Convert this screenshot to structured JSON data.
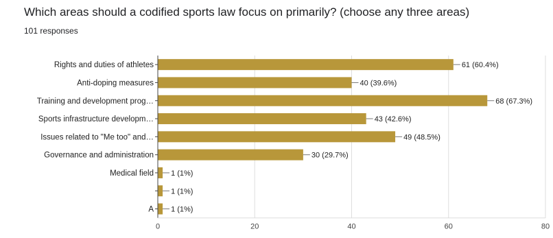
{
  "question": {
    "title": "Which areas should a codified sports law focus on primarily? (choose any three areas)",
    "responses": "101 responses"
  },
  "colors": {
    "bar": "#b8973a",
    "gridline": "#dddddd",
    "axis": "#444444",
    "leader": "#777777"
  },
  "chart_data": {
    "type": "bar",
    "orientation": "horizontal",
    "title": "Which areas should a codified sports law focus on primarily? (choose any three areas)",
    "subtitle": "101 responses",
    "categories": [
      "Rights and duties of athletes",
      "Anti-doping measures",
      "Training and development prog…",
      "Sports infrastructure developm…",
      "Issues related to \"Me too\" and…",
      "Governance and administration",
      "Medical field",
      "",
      "A"
    ],
    "values": [
      61,
      40,
      68,
      43,
      49,
      30,
      1,
      1,
      1
    ],
    "value_labels": [
      "61 (60.4%)",
      "40 (39.6%)",
      "68 (67.3%)",
      "43 (42.6%)",
      "49 (48.5%)",
      "30 (29.7%)",
      "1 (1%)",
      "1 (1%)",
      "1 (1%)"
    ],
    "xlim": [
      0,
      80
    ],
    "xticks": [
      0,
      20,
      40,
      60,
      80
    ],
    "grid": true,
    "legend": "none"
  }
}
